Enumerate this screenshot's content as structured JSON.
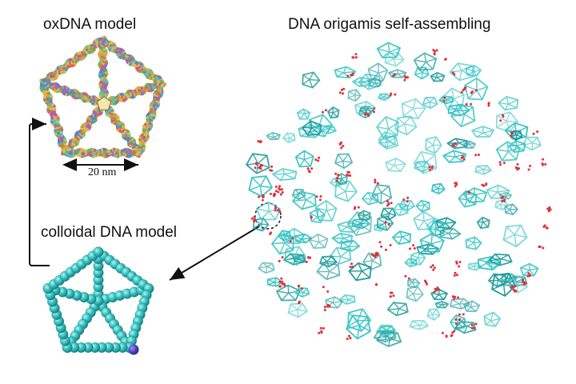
{
  "labels": {
    "oxdna_title": "oxDNA model",
    "self_assembly_title": "DNA origamis self-assembling",
    "colloidal_title": "colloidal DNA model",
    "scale_bar": "20 nm"
  },
  "colors": {
    "colloid": "#38c4c4",
    "colloid_dark": "#1e9c9c",
    "patch": "#4b45c8",
    "ion": "#e0303a",
    "ox_strands": [
      "#e7a23c",
      "#7ab04a",
      "#b25ab8",
      "#4a8fd0",
      "#d8c24a",
      "#e06a4a",
      "#5fc1a8"
    ]
  }
}
